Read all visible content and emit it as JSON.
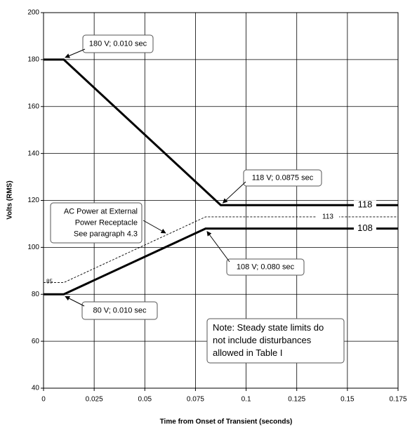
{
  "chart_data": {
    "type": "line",
    "xlabel": "Time from Onset of Transient (seconds)",
    "ylabel": "Volts (RMS)",
    "xlim": [
      0,
      0.175
    ],
    "xticks": [
      0,
      0.025,
      0.05,
      0.075,
      0.1,
      0.125,
      0.15,
      0.175
    ],
    "ylim": [
      40,
      200
    ],
    "yticks": [
      40,
      60,
      80,
      100,
      120,
      140,
      160,
      180,
      200
    ],
    "grid": true,
    "series": [
      {
        "color": "#000000",
        "style": "solid",
        "x": [
          0,
          0.01,
          0.0875,
          0.175
        ],
        "values": [
          180,
          180,
          118,
          118
        ]
      },
      {
        "color": "#000000",
        "style": "solid",
        "x": [
          0,
          0.01,
          0.08,
          0.175
        ],
        "values": [
          80,
          80,
          108,
          108
        ]
      },
      {
        "color": "#000000",
        "style": "dashed",
        "x": [
          0,
          0.01,
          0.08,
          0.175
        ],
        "values": [
          85,
          85,
          113,
          113
        ]
      }
    ],
    "annotations": [
      {
        "lines": [
          "180 V; 0.010 sec"
        ]
      },
      {
        "lines": [
          "118 V; 0.0875 sec"
        ]
      },
      {
        "lines": [
          "108 V; 0.080 sec"
        ]
      },
      {
        "lines": [
          "80 V; 0.010 sec"
        ]
      },
      {
        "lines": [
          "AC Power at External",
          "Power Receptacle",
          "See paragraph 4.3"
        ]
      },
      {
        "lines": [
          "Note: Steady state limits do",
          "not include disturbances",
          "allowed in Table I"
        ]
      }
    ]
  }
}
